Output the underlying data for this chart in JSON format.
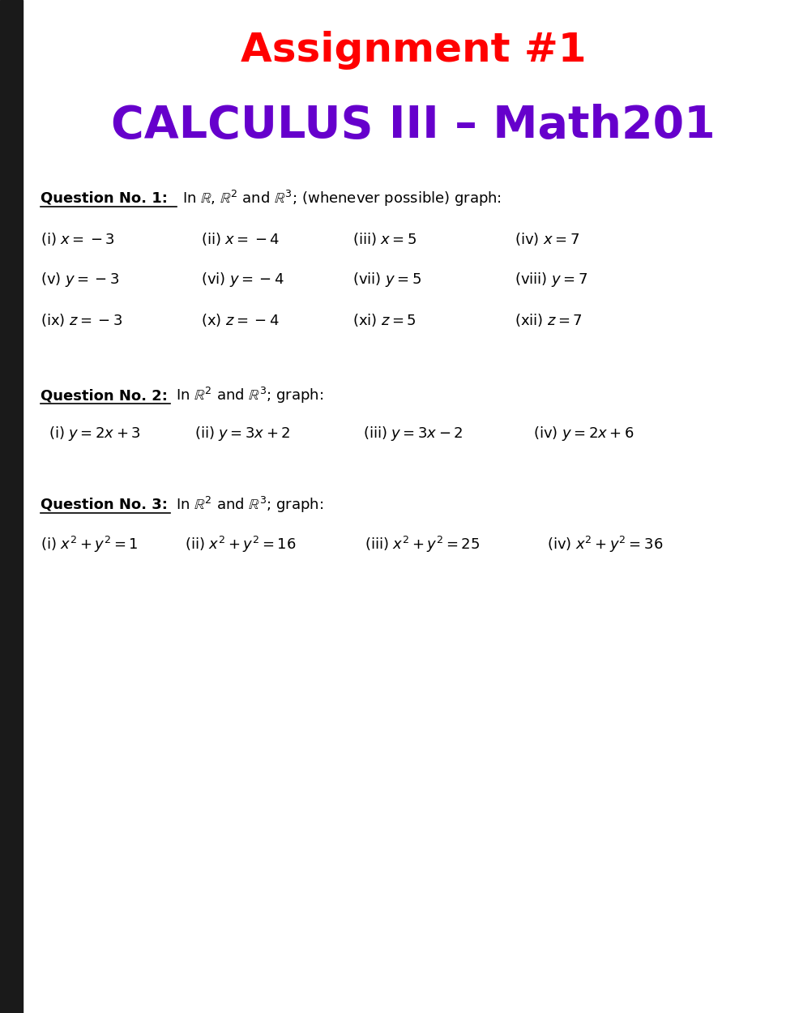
{
  "title": "Assignment #1",
  "subtitle": "CALCULUS III – Math201",
  "title_color": "#ff0000",
  "subtitle_color": "#6600cc",
  "bg_color": "#ffffff",
  "left_bar_color": "#1a1a1a",
  "q1_label": "Question No. 1:",
  "q1_text": "In $\\mathbb{R}$, $\\mathbb{R}^2$ and $\\mathbb{R}^3$; (whenever possible) graph:",
  "q1_items": [
    [
      "(i) $x = -3$",
      "(ii) $x = -4$",
      "(iii) $x =5$",
      "(iv) $x =7$"
    ],
    [
      "(v) $y = -3$",
      "(vi) $y = -4$",
      "(vii) $y =5$",
      "(viii) $y =7$"
    ],
    [
      "(ix) $z = -3$",
      "(x) $z = -4$",
      "(xi) $z =5$",
      "(xii) $z =7$"
    ]
  ],
  "q2_label": "Question No. 2:",
  "q2_text": "In $\\mathbb{R}^2$ and $\\mathbb{R}^3$; graph:",
  "q2_items": [
    "(i) $y = 2x + 3$",
    "(ii) $y = 3x + 2$",
    "(iii) $y = 3x - 2$",
    "(iv) $y = 2x + 6$"
  ],
  "q3_label": "Question No. 3:",
  "q3_text": "In $\\mathbb{R}^2$ and $\\mathbb{R}^3$; graph:",
  "q3_items": [
    "(i) $x^2 + y^2 = 1$",
    "(ii) $x^2 + y^2 = 16$",
    "(iii) $x^2 + y^2 = 25$",
    "(iv) $x^2 + y^2 = 36$"
  ]
}
